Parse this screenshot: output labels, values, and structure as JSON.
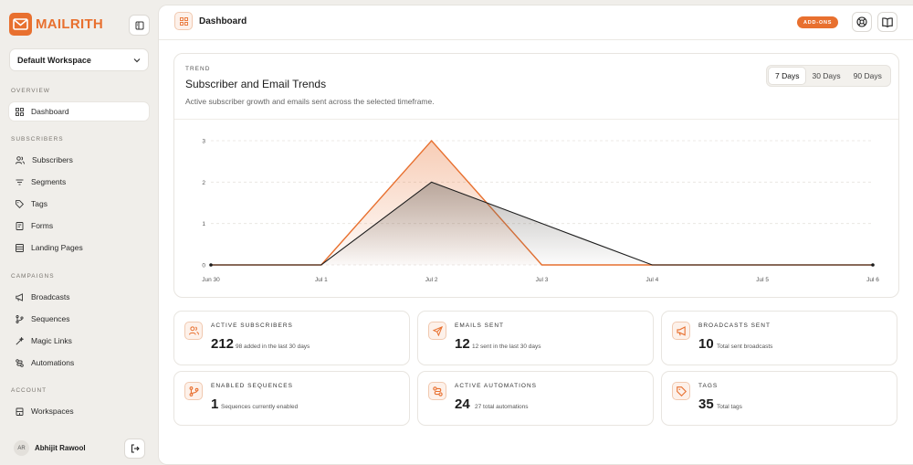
{
  "brand": {
    "name": "MAILRITH",
    "color": "#e8702f"
  },
  "workspace": {
    "selected": "Default Workspace"
  },
  "nav": {
    "overview_label": "OVERVIEW",
    "dashboard": "Dashboard",
    "subscribers_label": "SUBSCRIBERS",
    "subscribers": "Subscribers",
    "segments": "Segments",
    "tags": "Tags",
    "forms": "Forms",
    "landing_pages": "Landing Pages",
    "campaigns_label": "CAMPAIGNS",
    "broadcasts": "Broadcasts",
    "sequences": "Sequences",
    "magic_links": "Magic Links",
    "automations": "Automations",
    "account_label": "ACCOUNT",
    "workspaces": "Workspaces"
  },
  "user": {
    "initials": "AR",
    "name": "Abhijit Rawool"
  },
  "header": {
    "title": "Dashboard",
    "addons": "ADD-ONS"
  },
  "chart_card": {
    "eyebrow": "TREND",
    "title": "Subscriber and Email Trends",
    "subtitle": "Active subscriber growth and emails sent across the selected timeframe.",
    "ranges": [
      "7 Days",
      "30 Days",
      "90 Days"
    ],
    "selected_range": "7 Days"
  },
  "chart_data": {
    "type": "area",
    "x": [
      "Jun 30",
      "Jul 1",
      "Jul 2",
      "Jul 3",
      "Jul 4",
      "Jul 5",
      "Jul 6"
    ],
    "yticks": [
      0,
      1,
      2,
      3
    ],
    "ylim": [
      0,
      3
    ],
    "series": [
      {
        "values": [
          0,
          0,
          3,
          0,
          0,
          0,
          0
        ],
        "color": "#e8702f"
      },
      {
        "values": [
          0,
          0,
          2,
          1,
          0,
          0,
          0
        ],
        "color": "#1c1c1c"
      }
    ],
    "grid": true
  },
  "stats": [
    {
      "label": "ACTIVE SUBSCRIBERS",
      "value": "212",
      "note": "98 added in the last 30 days"
    },
    {
      "label": "EMAILS SENT",
      "value": "12",
      "note": "12 sent in the last 30 days"
    },
    {
      "label": "BROADCASTS SENT",
      "value": "10",
      "note": "Total sent broadcasts"
    },
    {
      "label": "ENABLED SEQUENCES",
      "value": "1",
      "note": "Sequences currently enabled"
    },
    {
      "label": "ACTIVE AUTOMATIONS",
      "value": "24",
      "note": "27 total automations"
    },
    {
      "label": "TAGS",
      "value": "35",
      "note": "Total tags"
    }
  ]
}
